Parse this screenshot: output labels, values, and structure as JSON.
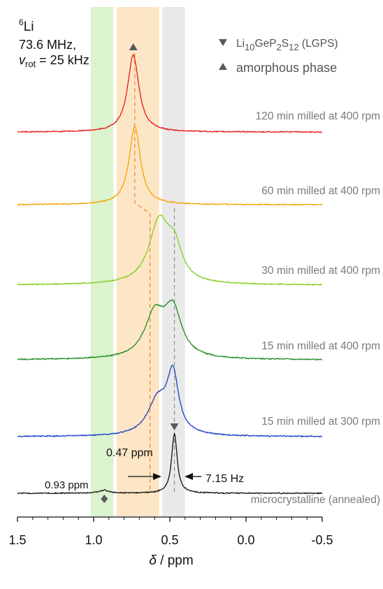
{
  "chart_data": {
    "type": "line",
    "title": "",
    "nucleus_mass": "6",
    "nucleus_symbol": "Li",
    "frequency": "73.6 MHz,",
    "spin_rate_symbol": "v",
    "spin_rate_sub": "rot",
    "spin_rate_value": " = 25 kHz",
    "xlabel_symbol": "δ",
    "xlabel_unit": " / ppm",
    "ylabel": "",
    "xlim": [
      1.5,
      -0.5
    ],
    "x_ticks": [
      "1.5",
      "1.0",
      "0.5",
      "0.0",
      "-0.5"
    ],
    "x_tick_values": [
      1.5,
      1.0,
      0.5,
      0.0,
      -0.5
    ],
    "shaded_regions": [
      {
        "from": 1.02,
        "to": 0.87,
        "color": "#dcf3cf"
      },
      {
        "from": 0.85,
        "to": 0.57,
        "color": "#fde6c5"
      },
      {
        "from": 0.55,
        "to": 0.4,
        "color": "#e9e9e9"
      }
    ],
    "legend": [
      {
        "marker": "down-triangle",
        "text_main": "Li",
        "sub1": "10",
        "text_mid": "GeP",
        "sub2": "2",
        "text_s": "S",
        "sub3": "12",
        "text_end": " (LGPS)"
      },
      {
        "marker": "up-triangle",
        "text": "amorphous phase"
      }
    ],
    "series": [
      {
        "name": "120 min milled at 400 rpm",
        "color": "#e8191b",
        "baseline": 0,
        "peaks": [
          {
            "center": 0.74,
            "height": 1.0,
            "width": 0.045
          }
        ]
      },
      {
        "name": "60 min milled at 400 rpm",
        "color": "#f5a300",
        "baseline": 0,
        "peaks": [
          {
            "center": 0.73,
            "height": 1.0,
            "width": 0.045
          }
        ]
      },
      {
        "name": "30 min milled at 400 rpm",
        "color": "#7fcf1f",
        "baseline": 0,
        "peaks": [
          {
            "center": 0.57,
            "height": 0.8,
            "width": 0.08
          },
          {
            "center": 0.47,
            "height": 0.4,
            "width": 0.06
          }
        ]
      },
      {
        "name": "15 min milled at 400 rpm",
        "color": "#1e8c1e",
        "baseline": 0,
        "peaks": [
          {
            "center": 0.6,
            "height": 0.55,
            "width": 0.08
          },
          {
            "center": 0.48,
            "height": 0.6,
            "width": 0.07
          }
        ]
      },
      {
        "name": "15 min milled at 300 rpm",
        "color": "#1a3fc7",
        "baseline": 0,
        "peaks": [
          {
            "center": 0.48,
            "height": 0.75,
            "width": 0.045
          },
          {
            "center": 0.58,
            "height": 0.45,
            "width": 0.08
          }
        ]
      },
      {
        "name": "microcrystalline (annealed)",
        "color": "#111111",
        "baseline": 0,
        "peaks": [
          {
            "center": 0.47,
            "height": 1.0,
            "width": 0.022
          },
          {
            "center": 0.93,
            "height": 0.05,
            "width": 0.04
          }
        ]
      }
    ],
    "markers": [
      {
        "type": "up-triangle",
        "x": 0.74,
        "series": "120 min milled at 400 rpm"
      },
      {
        "type": "down-triangle",
        "x": 0.47,
        "series": "microcrystalline (annealed)"
      },
      {
        "type": "diamond",
        "x": 0.93,
        "series": "microcrystalline (annealed)"
      }
    ],
    "annotations": {
      "peak_047": "0.47 ppm",
      "peak_093": "0.93 ppm",
      "linewidth": "7.15 Hz"
    },
    "colors": {
      "lgps_guide": "#8f8f8f",
      "amorphous_guide": "#ee8833",
      "marker": "#5a5a5a",
      "label_gray": "#7a7a7a"
    }
  }
}
